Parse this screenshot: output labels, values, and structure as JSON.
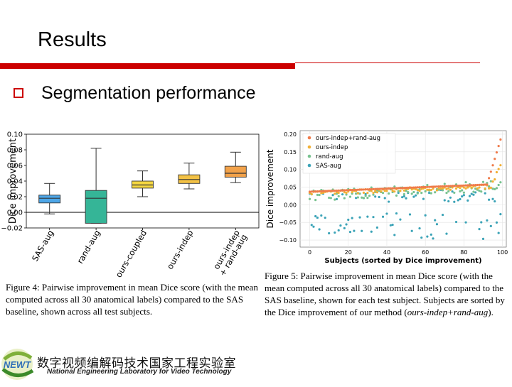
{
  "slide": {
    "title": "Results",
    "bullet": "Segmentation performance"
  },
  "colors": {
    "accent": "#cc0000",
    "sas": "#4da6e8",
    "rand": "#35b597",
    "coupled": "#f5d742",
    "indep": "#f3c246",
    "indep_rand": "#f2a24a"
  },
  "chart_data": [
    {
      "type": "box",
      "ylabel": "Dice improvement",
      "ylim": [
        -0.02,
        0.1
      ],
      "yticks": [
        "0.10",
        "0.08",
        "0.06",
        "0.04",
        "0.02",
        "0.00",
        "−0.02"
      ],
      "ytick_values": [
        0.1,
        0.08,
        0.06,
        0.04,
        0.02,
        0.0,
        -0.02
      ],
      "categories": [
        "SAS-aug",
        "rand-aug",
        "ours-coupled",
        "ours-indep",
        "ours-indep\n+ rand-aug"
      ],
      "boxes": [
        {
          "label": "SAS-aug",
          "whislo": -0.002,
          "q1": 0.012,
          "med": 0.018,
          "q3": 0.022,
          "whishi": 0.037,
          "color": "#4da6e8"
        },
        {
          "label": "rand-aug",
          "whislo": -0.014,
          "q1": -0.014,
          "med": 0.018,
          "q3": 0.028,
          "whishi": 0.082,
          "color": "#35b597"
        },
        {
          "label": "ours-coupled",
          "whislo": 0.02,
          "q1": 0.031,
          "med": 0.035,
          "q3": 0.04,
          "whishi": 0.053,
          "color": "#f5d742"
        },
        {
          "label": "ours-indep",
          "whislo": 0.03,
          "q1": 0.037,
          "med": 0.042,
          "q3": 0.048,
          "whishi": 0.063,
          "color": "#f3c246"
        },
        {
          "label": "ours-indep + rand-aug",
          "whislo": 0.038,
          "q1": 0.045,
          "med": 0.05,
          "q3": 0.059,
          "whishi": 0.077,
          "color": "#f2a24a"
        }
      ],
      "xlabel_lines": [
        [
          "SAS-aug"
        ],
        [
          "rand-aug"
        ],
        [
          "ours-coupled"
        ],
        [
          "ours-indep"
        ],
        [
          "ours-indep",
          "+ rand-aug"
        ]
      ]
    },
    {
      "type": "scatter",
      "xlabel": "Subjects (sorted by Dice improvement)",
      "ylabel": "Dice improvement",
      "xlim": [
        -5,
        102
      ],
      "ylim": [
        -0.12,
        0.21
      ],
      "xticks": [
        0,
        20,
        40,
        60,
        80,
        100
      ],
      "xtick_labels": [
        "0",
        "20",
        "40",
        "60",
        "80",
        "100"
      ],
      "yticks": [
        0.2,
        0.15,
        0.1,
        0.05,
        0.0,
        -0.05,
        -0.1
      ],
      "ytick_labels": [
        "0.20",
        "0.15",
        "0.10",
        "0.05",
        "0.00",
        "−0.05",
        "−0.10"
      ],
      "legend_position": "top-left",
      "series": [
        {
          "name": "ours-indep+rand-aug",
          "color": "#ef7b4b",
          "model": "top"
        },
        {
          "name": "ours-indep",
          "color": "#f2b035",
          "model": "mid"
        },
        {
          "name": "rand-aug",
          "color": "#78c28f",
          "model": "low"
        },
        {
          "name": "SAS-aug",
          "color": "#3ba3b7",
          "model": "sas"
        }
      ]
    }
  ],
  "captions": {
    "fig4": "Figure 4: Pairwise improvement in mean Dice score (with the mean computed across all 30 anatomical labels) compared to the SAS baseline, shown across all test subjects.",
    "fig5_a": "Figure 5: Pairwise improvement in mean Dice score (with the mean computed across all 30 anatomical labels) compared to the SAS baseline, shown for each test subject. Subjects are sorted by the Dice improvement of our method (",
    "fig5_em": "ours-indep+rand-aug",
    "fig5_b": ")."
  },
  "footer": {
    "logo_text": "NEWT",
    "cn_name": "数字视频编解码技术国家工程实验室",
    "en_name": "National Engineering Laboratory for Video Technology"
  }
}
